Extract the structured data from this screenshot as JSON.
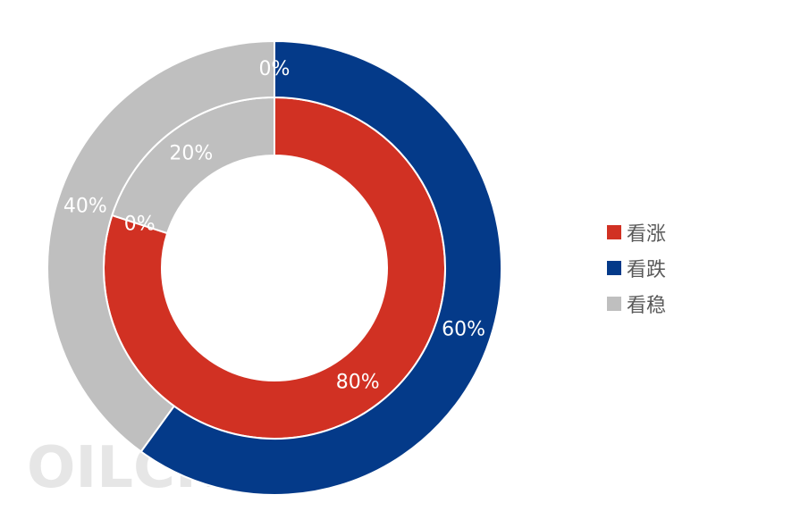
{
  "chart_data": {
    "type": "pie",
    "subtype": "doughnut",
    "categories": [
      "看涨",
      "看跌",
      "看稳"
    ],
    "colors": [
      "#d13123",
      "#043a89",
      "#bfbfbf"
    ],
    "series": [
      {
        "ring": "inner",
        "values": [
          80,
          0,
          20
        ],
        "labels": [
          "80%",
          "0%",
          "20%"
        ]
      },
      {
        "ring": "outer",
        "values": [
          0,
          60,
          40
        ],
        "labels": [
          "0%",
          "60%",
          "40%"
        ]
      }
    ],
    "legend_position": "right"
  },
  "watermark": "OILCH"
}
